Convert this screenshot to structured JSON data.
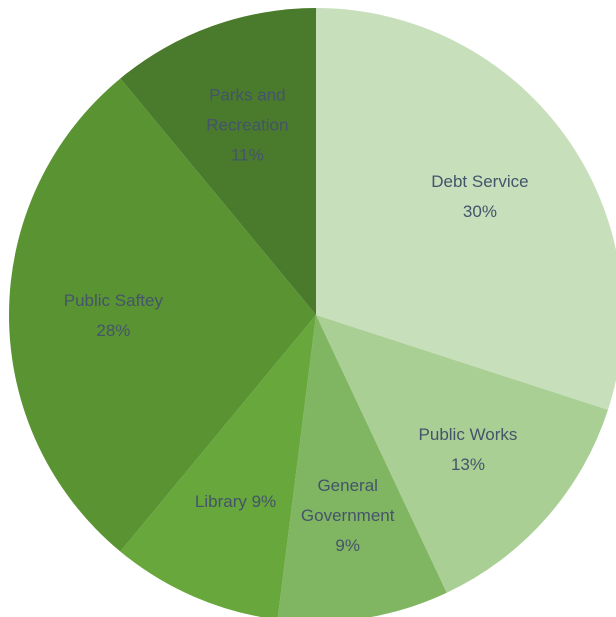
{
  "chart_data": {
    "type": "pie",
    "title": "",
    "legend": "none",
    "slices": [
      {
        "name": "Debt Service",
        "value": 30,
        "label_lines": [
          "Debt Service",
          "30%"
        ],
        "color": "#c8dfbc"
      },
      {
        "name": "Public Works",
        "value": 13,
        "label_lines": [
          "Public Works",
          "13%"
        ],
        "color": "#a9cf94"
      },
      {
        "name": "General Government",
        "value": 9,
        "label_lines": [
          "General",
          "Government",
          "9%"
        ],
        "color": "#80b562"
      },
      {
        "name": "Library",
        "value": 9,
        "label_lines": [
          "Library 9%"
        ],
        "color": "#67a73c"
      },
      {
        "name": "Public Saftey",
        "value": 28,
        "label_lines": [
          "Public Saftey",
          "28%"
        ],
        "color": "#5a9432"
      },
      {
        "name": "Parks and Recreation",
        "value": 11,
        "label_lines": [
          "Parks and",
          "Recreation",
          "11%"
        ],
        "color": "#4a7a2b"
      }
    ]
  }
}
